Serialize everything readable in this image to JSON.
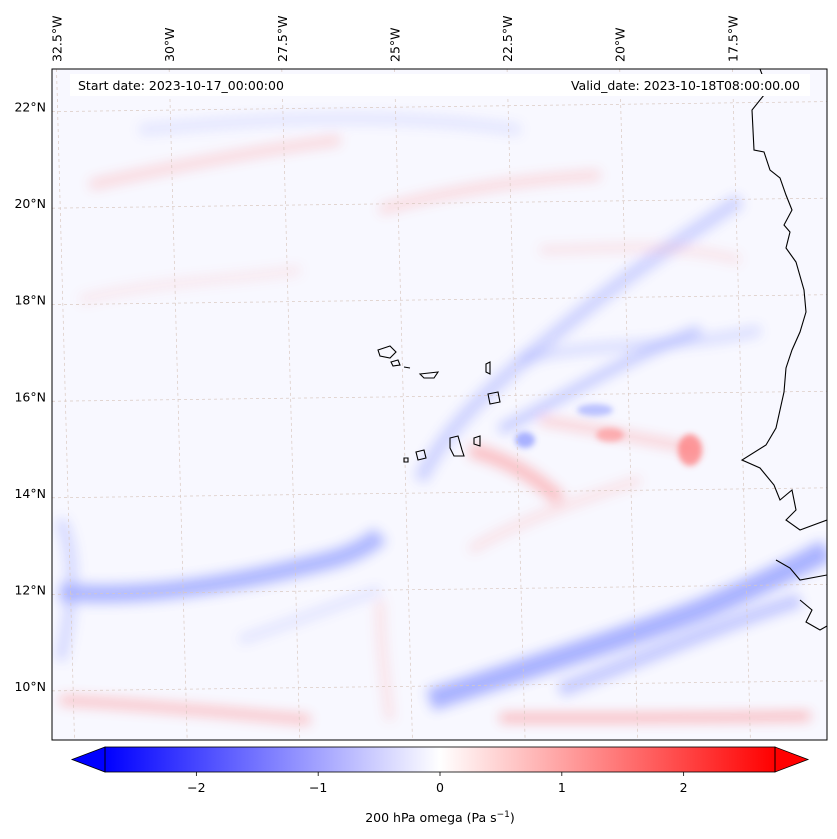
{
  "map": {
    "start_date_label": "Start date: 2023-10-17_00:00:00",
    "valid_date_label": "Valid_date: 2023-10-18T08:00:00.00",
    "lon_ticks": [
      {
        "label": "32.5°W",
        "value": -32.5
      },
      {
        "label": "30°W",
        "value": -30
      },
      {
        "label": "27.5°W",
        "value": -27.5
      },
      {
        "label": "25°W",
        "value": -25
      },
      {
        "label": "22.5°W",
        "value": -22.5
      },
      {
        "label": "20°W",
        "value": -20
      },
      {
        "label": "17.5°W",
        "value": -17.5
      }
    ],
    "lat_ticks": [
      {
        "label": "22°N",
        "value": 22
      },
      {
        "label": "20°N",
        "value": 20
      },
      {
        "label": "18°N",
        "value": 18
      },
      {
        "label": "16°N",
        "value": 16
      },
      {
        "label": "14°N",
        "value": 14
      },
      {
        "label": "12°N",
        "value": 12
      },
      {
        "label": "10°N",
        "value": 10
      }
    ],
    "extent": {
      "lon_min": -32.6,
      "lon_max": -15.4,
      "lat_min": 8.9,
      "lat_max": 22.8
    },
    "colors": {
      "negative": "#0000ff",
      "zero": "#ffffff",
      "positive": "#ff0000",
      "gridline": "#d9c8c0",
      "coast": "#000000"
    }
  },
  "colorbar": {
    "label": "200 hPa omega (Pa s",
    "label_sup": "−1",
    "label_close": ")",
    "vmin": -2.75,
    "vmax": 2.75,
    "ticks": [
      {
        "label": "−2",
        "value": -2
      },
      {
        "label": "−1",
        "value": -1
      },
      {
        "label": "0",
        "value": 0
      },
      {
        "label": "1",
        "value": 1
      },
      {
        "label": "2",
        "value": 2
      }
    ],
    "extend": "both"
  }
}
